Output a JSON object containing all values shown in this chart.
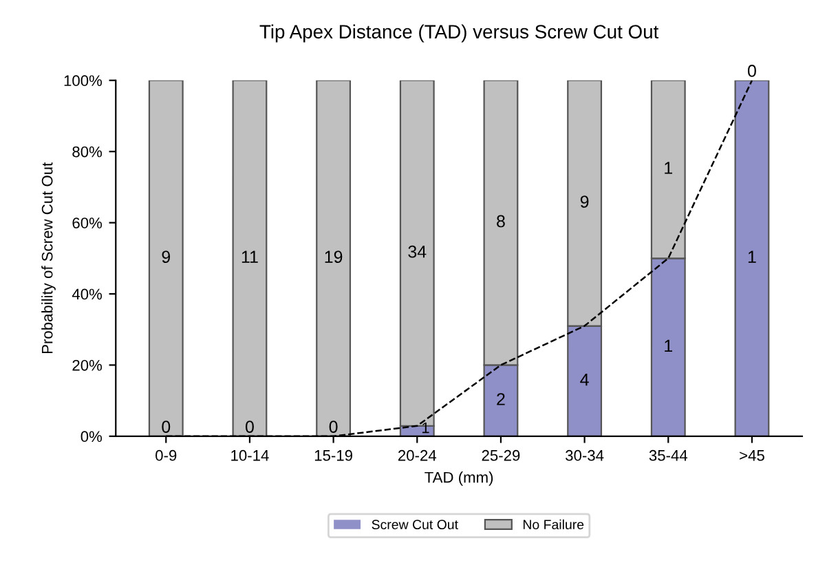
{
  "chart_data": {
    "type": "bar",
    "title": "Tip Apex Distance (TAD) versus Screw Cut Out",
    "xlabel": "TAD (mm)",
    "ylabel": "Probability of Screw Cut Out",
    "categories": [
      "0-9",
      "10-14",
      "15-19",
      "20-24",
      "25-29",
      "30-34",
      "35-44",
      ">45"
    ],
    "stacked": true,
    "series": [
      {
        "name": "Screw Cut Out",
        "color": "#9090c8",
        "values": [
          0,
          0,
          0,
          2.9,
          20,
          31,
          50,
          100
        ]
      },
      {
        "name": "No Failure",
        "color": "#c0c0c0",
        "values": [
          100,
          100,
          100,
          97.1,
          80,
          69,
          50,
          0
        ]
      },
      {
        "type": "line",
        "color": "#000000",
        "line_style": "dashed",
        "values": [
          0,
          0,
          0,
          2.9,
          20,
          31,
          50,
          100
        ]
      }
    ],
    "ylim": [
      0,
      100
    ],
    "yticks": [
      {
        "value": 0,
        "label": "0%"
      },
      {
        "value": 20,
        "label": "20%"
      },
      {
        "value": 40,
        "label": "40%"
      },
      {
        "value": 60,
        "label": "60%"
      },
      {
        "value": 80,
        "label": "80%"
      },
      {
        "value": 100,
        "label": "100%"
      }
    ],
    "annotations": [
      "0",
      "0",
      "0",
      "1",
      "2",
      "4",
      "1",
      "1",
      "9",
      "11",
      "19",
      "34",
      "8",
      "9",
      "1",
      "0"
    ],
    "grid": false,
    "legend": "bottom",
    "marker": "none"
  }
}
